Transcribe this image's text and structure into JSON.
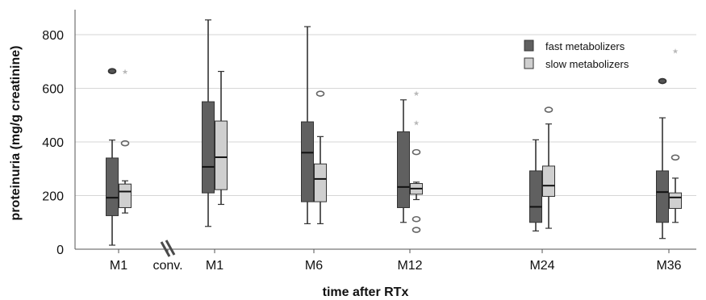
{
  "chart_data": {
    "type": "box",
    "xlabel": "time after RTx",
    "ylabel": "proteinuria (mg/g creatinine)",
    "ylim": [
      0,
      880
    ],
    "yticks": [
      0,
      200,
      400,
      600,
      800
    ],
    "grid": true,
    "categories": [
      "M1",
      "conv.",
      "M1",
      "M6",
      "M12",
      "M24",
      "M36"
    ],
    "legend": {
      "position": "top-right",
      "entries": [
        {
          "name": "fast metabolizers",
          "color": "#606060"
        },
        {
          "name": "slow metabolizers",
          "color": "#cfcfcf"
        }
      ]
    },
    "series": [
      {
        "name": "fast metabolizers",
        "color": "#606060",
        "boxes": [
          {
            "category_index": 0,
            "min": 15,
            "q1": 125,
            "median": 192,
            "q3": 340,
            "max": 407,
            "outliers": [
              {
                "value": 664,
                "type": "circle"
              }
            ]
          },
          {
            "category_index": 2,
            "min": 85,
            "q1": 210,
            "median": 307,
            "q3": 550,
            "max": 855,
            "outliers": []
          },
          {
            "category_index": 3,
            "min": 95,
            "q1": 177,
            "median": 360,
            "q3": 475,
            "max": 830,
            "outliers": []
          },
          {
            "category_index": 4,
            "min": 100,
            "q1": 155,
            "median": 232,
            "q3": 438,
            "max": 557,
            "outliers": []
          },
          {
            "category_index": 5,
            "min": 68,
            "q1": 100,
            "median": 158,
            "q3": 292,
            "max": 408,
            "outliers": []
          },
          {
            "category_index": 6,
            "min": 40,
            "q1": 100,
            "median": 213,
            "q3": 292,
            "max": 490,
            "outliers": [
              {
                "value": 627,
                "type": "circle"
              }
            ]
          }
        ]
      },
      {
        "name": "slow metabolizers",
        "color": "#cfcfcf",
        "boxes": [
          {
            "category_index": 0,
            "min": 135,
            "q1": 155,
            "median": 215,
            "q3": 243,
            "max": 255,
            "outliers": [
              {
                "value": 395,
                "type": "circle"
              },
              {
                "value": 662,
                "type": "star"
              }
            ]
          },
          {
            "category_index": 2,
            "min": 167,
            "q1": 222,
            "median": 343,
            "q3": 478,
            "max": 663,
            "outliers": []
          },
          {
            "category_index": 3,
            "min": 95,
            "q1": 177,
            "median": 262,
            "q3": 318,
            "max": 420,
            "outliers": [
              {
                "value": 580,
                "type": "circle"
              }
            ]
          },
          {
            "category_index": 4,
            "min": 185,
            "q1": 205,
            "median": 226,
            "q3": 245,
            "max": 250,
            "outliers": [
              {
                "value": 362,
                "type": "circle"
              },
              {
                "value": 112,
                "type": "circle"
              },
              {
                "value": 72,
                "type": "circle"
              },
              {
                "value": 470,
                "type": "star"
              },
              {
                "value": 580,
                "type": "star"
              }
            ]
          },
          {
            "category_index": 5,
            "min": 78,
            "q1": 197,
            "median": 237,
            "q3": 310,
            "max": 467,
            "outliers": [
              {
                "value": 520,
                "type": "circle"
              }
            ]
          },
          {
            "category_index": 6,
            "min": 100,
            "q1": 152,
            "median": 193,
            "q3": 210,
            "max": 265,
            "outliers": [
              {
                "value": 342,
                "type": "circle"
              },
              {
                "value": 738,
                "type": "star"
              }
            ]
          }
        ]
      }
    ]
  }
}
